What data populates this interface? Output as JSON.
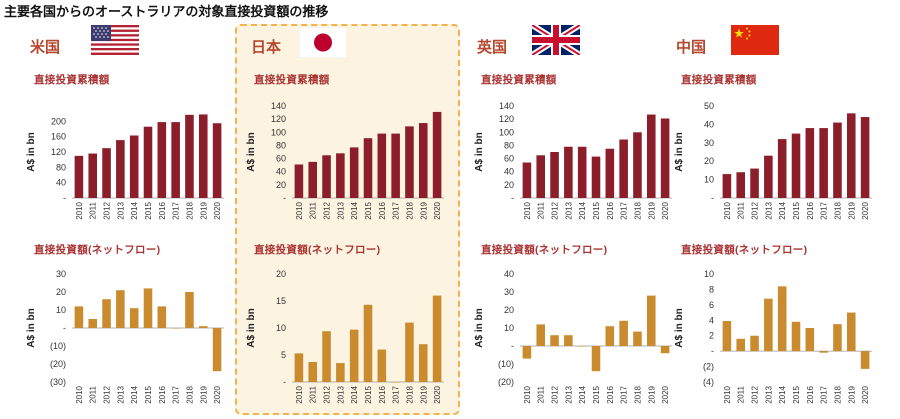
{
  "title": "主要各国からのオーストラリアの対象直接投資額の推移",
  "cumulative_label": "直接投資累積額",
  "flow_label": "直接投資額(ネットフロー)",
  "ylabel": "A$ in bn",
  "colors": {
    "cumulative": "#8b1e2a",
    "flow": "#c98b2e",
    "highlight_bg": "#fdf3e1",
    "highlight_border": "#f2b24c",
    "country": "#b5482f"
  },
  "countries": [
    {
      "id": "us",
      "name": "米国",
      "flag_icon": "us-flag-icon"
    },
    {
      "id": "jp",
      "name": "日本",
      "flag_icon": "japan-flag-icon"
    },
    {
      "id": "uk",
      "name": "英国",
      "flag_icon": "uk-flag-icon"
    },
    {
      "id": "cn",
      "name": "中国",
      "flag_icon": "china-flag-icon"
    }
  ],
  "chart_data": [
    {
      "type": "bar",
      "country": "米国",
      "title": "直接投資累積額",
      "ylabel": "A$ in bn",
      "categories": [
        "2010",
        "2011",
        "2012",
        "2013",
        "2014",
        "2015",
        "2016",
        "2017",
        "2018",
        "2019",
        "2020"
      ],
      "values": [
        110,
        116,
        130,
        151,
        163,
        186,
        198,
        198,
        217,
        218,
        195
      ],
      "ylim": [
        0,
        240
      ],
      "yticks": [
        0,
        40,
        80,
        120,
        160,
        200
      ],
      "ytick_labels": [
        "-",
        "40",
        "80",
        "120",
        "160",
        "200"
      ]
    },
    {
      "type": "bar",
      "country": "日本",
      "title": "直接投資累積額",
      "ylabel": "A$ in bn",
      "categories": [
        "2010",
        "2011",
        "2012",
        "2013",
        "2014",
        "2015",
        "2016",
        "2017",
        "2018",
        "2019",
        "2020"
      ],
      "values": [
        51,
        55,
        65,
        68,
        77,
        91,
        98,
        98,
        109,
        114,
        131
      ],
      "ylim": [
        0,
        140
      ],
      "yticks": [
        0,
        20,
        40,
        60,
        80,
        100,
        120,
        140
      ],
      "ytick_labels": [
        "-",
        "20",
        "40",
        "60",
        "80",
        "100",
        "120",
        "140"
      ]
    },
    {
      "type": "bar",
      "country": "英国",
      "title": "直接投資累積額",
      "ylabel": "A$ in bn",
      "categories": [
        "2010",
        "2011",
        "2012",
        "2013",
        "2014",
        "2015",
        "2016",
        "2017",
        "2018",
        "2019",
        "2020"
      ],
      "values": [
        54,
        65,
        70,
        78,
        78,
        63,
        75,
        89,
        100,
        127,
        121
      ],
      "ylim": [
        0,
        140
      ],
      "yticks": [
        0,
        20,
        40,
        60,
        80,
        100,
        120,
        140
      ],
      "ytick_labels": [
        "-",
        "20",
        "40",
        "60",
        "80",
        "100",
        "120",
        "140"
      ]
    },
    {
      "type": "bar",
      "country": "中国",
      "title": "直接投資累積額",
      "ylabel": "A$ in bn",
      "categories": [
        "2010",
        "2011",
        "2012",
        "2013",
        "2014",
        "2015",
        "2016",
        "2017",
        "2018",
        "2019",
        "2020"
      ],
      "values": [
        13,
        14,
        16,
        23,
        32,
        35,
        38,
        38,
        41,
        46,
        44
      ],
      "ylim": [
        0,
        50
      ],
      "yticks": [
        0,
        10,
        20,
        30,
        40,
        50
      ],
      "ytick_labels": [
        "-",
        "10",
        "20",
        "30",
        "40",
        "50"
      ]
    },
    {
      "type": "bar",
      "country": "米国",
      "title": "直接投資額(ネットフロー)",
      "ylabel": "A$ in bn",
      "categories": [
        "2010",
        "2011",
        "2012",
        "2013",
        "2014",
        "2015",
        "2016",
        "2017",
        "2018",
        "2019",
        "2020"
      ],
      "values": [
        12,
        5,
        16,
        21,
        11,
        22,
        12,
        0,
        20,
        1,
        -24
      ],
      "ylim": [
        -30,
        30
      ],
      "yticks": [
        -30,
        -20,
        -10,
        0,
        10,
        20,
        30
      ],
      "ytick_labels": [
        "(30)",
        "(20)",
        "(10)",
        "-",
        "10",
        "20",
        "30"
      ]
    },
    {
      "type": "bar",
      "country": "日本",
      "title": "直接投資額(ネットフロー)",
      "ylabel": "A$ in bn",
      "categories": [
        "2010",
        "2011",
        "2012",
        "2013",
        "2014",
        "2015",
        "2016",
        "2017",
        "2018",
        "2019",
        "2020"
      ],
      "values": [
        5.3,
        3.7,
        9.4,
        3.5,
        9.7,
        14.3,
        6,
        0,
        11,
        7,
        16
      ],
      "ylim": [
        0,
        20
      ],
      "yticks": [
        0,
        5,
        10,
        15,
        20
      ],
      "ytick_labels": [
        "-",
        "5",
        "10",
        "15",
        "20"
      ]
    },
    {
      "type": "bar",
      "country": "英国",
      "title": "直接投資額(ネットフロー)",
      "ylabel": "A$ in bn",
      "categories": [
        "2010",
        "2011",
        "2012",
        "2013",
        "2014",
        "2015",
        "2016",
        "2017",
        "2018",
        "2019",
        "2020"
      ],
      "values": [
        -7,
        12,
        6,
        6,
        0,
        -14,
        11,
        14,
        8,
        28,
        -4
      ],
      "ylim": [
        -20,
        40
      ],
      "yticks": [
        -20,
        -10,
        0,
        10,
        20,
        30,
        40
      ],
      "ytick_labels": [
        "(20)",
        "(10)",
        "-",
        "10",
        "20",
        "30",
        "40"
      ]
    },
    {
      "type": "bar",
      "country": "中国",
      "title": "直接投資額(ネットフロー)",
      "ylabel": "A$ in bn",
      "categories": [
        "2010",
        "2011",
        "2012",
        "2013",
        "2014",
        "2015",
        "2016",
        "2017",
        "2018",
        "2019",
        "2020"
      ],
      "values": [
        3.9,
        1.6,
        2,
        6.8,
        8.4,
        3.8,
        3,
        -0.2,
        3.5,
        5,
        -2.3
      ],
      "ylim": [
        -4,
        10
      ],
      "yticks": [
        -4,
        -2,
        0,
        2,
        4,
        6,
        8,
        10
      ],
      "ytick_labels": [
        "(4)",
        "(2)",
        "-",
        "2",
        "4",
        "6",
        "8",
        "10"
      ]
    }
  ]
}
